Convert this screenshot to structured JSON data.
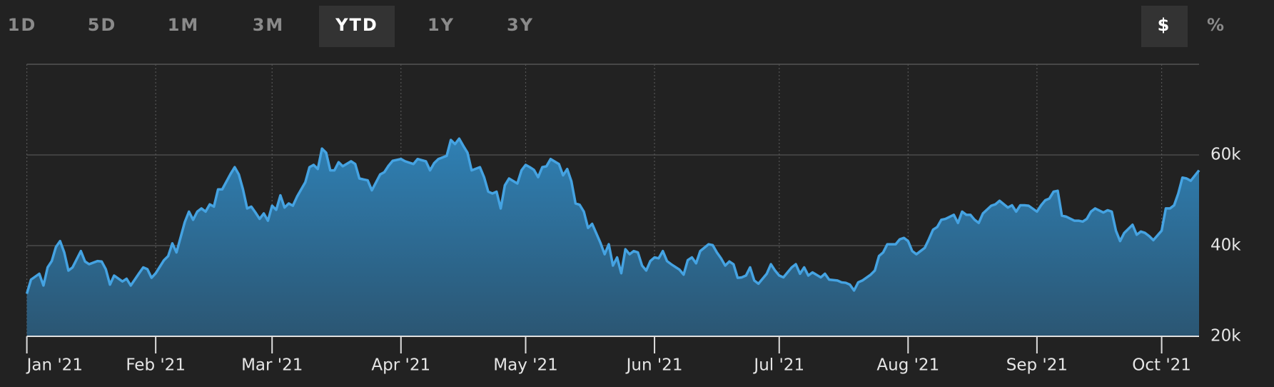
{
  "controls": {
    "ranges": [
      "1D",
      "5D",
      "1M",
      "3M",
      "YTD",
      "1Y",
      "3Y"
    ],
    "active_range": "YTD",
    "units": [
      "$",
      "%"
    ],
    "active_unit": "$"
  },
  "chart_data": {
    "type": "area",
    "color": "#45a3e2",
    "grid": true,
    "xlim": [
      0,
      282
    ],
    "ylim": [
      20000,
      80000
    ],
    "yticks": [
      {
        "value": 20000,
        "label": "20k"
      },
      {
        "value": 40000,
        "label": "40k"
      },
      {
        "value": 60000,
        "label": "60k"
      }
    ],
    "xticks": [
      {
        "value": 0,
        "label": "Jan '21"
      },
      {
        "value": 31,
        "label": "Feb '21"
      },
      {
        "value": 59,
        "label": "Mar '21"
      },
      {
        "value": 90,
        "label": "Apr '21"
      },
      {
        "value": 120,
        "label": "May '21"
      },
      {
        "value": 151,
        "label": "Jun '21"
      },
      {
        "value": 181,
        "label": "Jul '21"
      },
      {
        "value": 212,
        "label": "Aug '21"
      },
      {
        "value": 243,
        "label": "Sep '21"
      },
      {
        "value": 273,
        "label": "Oct '21"
      }
    ],
    "x": [
      0,
      1,
      3,
      4,
      5,
      6,
      7,
      8,
      9,
      10,
      11,
      13,
      14,
      15,
      17,
      18,
      19,
      20,
      21,
      23,
      24,
      25,
      27,
      28,
      29,
      30,
      31,
      33,
      34,
      35,
      36,
      38,
      39,
      40,
      41,
      42,
      43,
      44,
      45,
      46,
      47,
      49,
      50,
      51,
      52,
      53,
      54,
      55,
      56,
      57,
      58,
      59,
      60,
      61,
      62,
      63,
      64,
      65,
      67,
      68,
      69,
      70,
      71,
      72,
      73,
      74,
      75,
      76,
      78,
      79,
      80,
      82,
      83,
      85,
      86,
      87,
      88,
      90,
      91,
      93,
      94,
      96,
      97,
      98,
      99,
      101,
      102,
      103,
      104,
      105,
      106,
      107,
      109,
      110,
      111,
      112,
      113,
      114,
      115,
      116,
      118,
      119,
      120,
      121,
      122,
      123,
      124,
      125,
      126,
      128,
      129,
      130,
      131,
      132,
      133,
      134,
      135,
      136,
      138,
      139,
      140,
      141,
      142,
      143,
      144,
      145,
      146,
      147,
      148,
      149,
      150,
      151,
      152,
      153,
      154,
      155,
      157,
      158,
      159,
      160,
      161,
      162,
      164,
      165,
      166,
      167,
      168,
      169,
      170,
      171,
      172,
      173,
      174,
      175,
      176,
      178,
      179,
      180,
      181,
      182,
      184,
      185,
      186,
      187,
      188,
      189,
      191,
      192,
      193,
      195,
      196,
      197,
      198,
      199,
      200,
      201,
      203,
      204,
      205,
      206,
      207,
      209,
      210,
      211,
      212,
      213,
      214,
      216,
      217,
      218,
      219,
      220,
      221,
      223,
      224,
      225,
      226,
      227,
      228,
      229,
      230,
      232,
      233,
      234,
      236,
      237,
      238,
      239,
      240,
      241,
      243,
      244,
      245,
      246,
      247,
      248,
      249,
      250,
      252,
      253,
      254,
      255,
      256,
      257,
      259,
      260,
      261,
      262,
      263,
      264,
      266,
      267,
      268,
      269,
      270,
      271,
      273,
      274,
      275,
      276,
      277,
      278,
      279,
      280,
      282
    ],
    "values": [
      29400,
      32500,
      33800,
      31200,
      35200,
      36600,
      39700,
      41000,
      38500,
      34500,
      35200,
      38800,
      36500,
      35900,
      36600,
      36500,
      34800,
      31400,
      33400,
      32100,
      32700,
      31200,
      33900,
      35200,
      34800,
      32900,
      33900,
      36800,
      37700,
      40500,
      38500,
      45200,
      47500,
      45700,
      47500,
      48200,
      47500,
      49100,
      48600,
      52400,
      52400,
      55800,
      57300,
      55700,
      52400,
      48200,
      48600,
      47300,
      45900,
      47100,
      45500,
      48800,
      47900,
      51100,
      48400,
      49300,
      48800,
      50800,
      54000,
      57300,
      57800,
      56900,
      61400,
      60500,
      56600,
      56600,
      58400,
      57500,
      58600,
      58000,
      54800,
      54400,
      52200,
      55700,
      56200,
      57600,
      58700,
      59100,
      58600,
      58000,
      59100,
      58600,
      56600,
      58200,
      59100,
      59800,
      63300,
      62400,
      63600,
      62000,
      60500,
      56600,
      57300,
      55100,
      51900,
      51500,
      51900,
      48200,
      53300,
      54800,
      53700,
      56600,
      57800,
      57300,
      56700,
      55100,
      57300,
      57500,
      59100,
      58000,
      55500,
      56900,
      54200,
      49300,
      49000,
      47500,
      43900,
      44800,
      40600,
      38100,
      40300,
      35600,
      37400,
      33900,
      39200,
      38100,
      38800,
      38500,
      35600,
      34500,
      36600,
      37400,
      37200,
      38800,
      36600,
      35900,
      34700,
      33600,
      36800,
      37400,
      36100,
      38800,
      40300,
      40100,
      38500,
      37200,
      35600,
      36500,
      35900,
      32900,
      33000,
      33400,
      35200,
      32300,
      31600,
      33800,
      35900,
      34500,
      33400,
      33000,
      35200,
      35900,
      33800,
      35200,
      33400,
      34100,
      33000,
      33800,
      32500,
      32300,
      31900,
      31800,
      31400,
      30100,
      31900,
      32300,
      33600,
      34500,
      37700,
      38500,
      40300,
      40300,
      41400,
      41700,
      41000,
      38800,
      38100,
      39500,
      41400,
      43500,
      44100,
      45700,
      45900,
      46800,
      45000,
      47500,
      46800,
      46800,
      45700,
      45000,
      47100,
      48800,
      49100,
      49900,
      48400,
      48900,
      47500,
      48900,
      48900,
      48800,
      47500,
      48900,
      50000,
      50400,
      51900,
      52100,
      46600,
      46400,
      45500,
      45500,
      45300,
      45900,
      47500,
      48200,
      47300,
      47800,
      47500,
      43300,
      41000,
      42800,
      44600,
      42400,
      43100,
      42800,
      42100,
      41200,
      43300,
      48200,
      48200,
      48900,
      51500,
      55000,
      54800,
      54300,
      56600
    ]
  }
}
